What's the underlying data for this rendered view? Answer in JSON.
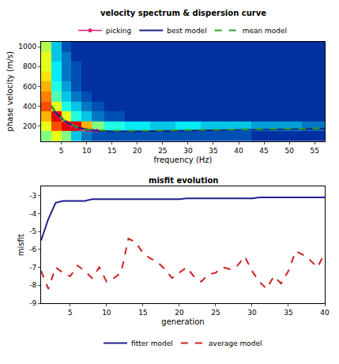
{
  "chart_data": [
    {
      "type": "heatmap",
      "title": "velocity spectrum & dispersion curve",
      "x_label": "frequency (Hz)",
      "y_label": "phase velocity (m/s)",
      "xlim": [
        1,
        57
      ],
      "ylim": [
        50,
        1050
      ],
      "xticks": [
        5,
        10,
        15,
        20,
        25,
        30,
        35,
        40,
        45,
        50,
        55
      ],
      "yticks": [
        200,
        400,
        600,
        800,
        1000
      ],
      "legend": "top",
      "heatmap": {
        "x": [
          2,
          4,
          6,
          8,
          10,
          12,
          15,
          20,
          25,
          30,
          35,
          40,
          45,
          50,
          55
        ],
        "y": [
          100,
          200,
          300,
          400,
          500,
          600,
          700,
          800,
          900,
          1000
        ],
        "zlim": [
          0,
          1
        ],
        "z": [
          [
            0.5,
            0.6,
            0.5,
            0.3,
            0.2,
            0.15,
            0.15,
            0.15,
            0.15,
            0.15,
            0.15,
            0.15,
            0.1,
            0.1,
            0.1
          ],
          [
            0.6,
            0.8,
            0.9,
            0.9,
            0.7,
            0.5,
            0.4,
            0.35,
            0.3,
            0.35,
            0.3,
            0.3,
            0.25,
            0.25,
            0.2
          ],
          [
            0.7,
            0.9,
            0.6,
            0.4,
            0.3,
            0.2,
            0.15,
            0.1,
            0.1,
            0.1,
            0.1,
            0.1,
            0.1,
            0.1,
            0.1
          ],
          [
            0.8,
            0.6,
            0.4,
            0.3,
            0.2,
            0.15,
            0.1,
            0.1,
            0.1,
            0.1,
            0.1,
            0.1,
            0.1,
            0.1,
            0.1
          ],
          [
            0.75,
            0.45,
            0.3,
            0.2,
            0.15,
            0.1,
            0.1,
            0.1,
            0.1,
            0.1,
            0.1,
            0.1,
            0.1,
            0.1,
            0.1
          ],
          [
            0.7,
            0.4,
            0.25,
            0.15,
            0.1,
            0.1,
            0.1,
            0.1,
            0.1,
            0.1,
            0.1,
            0.1,
            0.1,
            0.1,
            0.1
          ],
          [
            0.65,
            0.35,
            0.2,
            0.15,
            0.1,
            0.1,
            0.1,
            0.1,
            0.1,
            0.1,
            0.1,
            0.1,
            0.1,
            0.1,
            0.1
          ],
          [
            0.6,
            0.35,
            0.2,
            0.15,
            0.1,
            0.1,
            0.1,
            0.1,
            0.1,
            0.1,
            0.1,
            0.1,
            0.1,
            0.1,
            0.1
          ],
          [
            0.6,
            0.3,
            0.2,
            0.1,
            0.1,
            0.1,
            0.1,
            0.1,
            0.1,
            0.1,
            0.1,
            0.1,
            0.1,
            0.1,
            0.1
          ],
          [
            0.55,
            0.3,
            0.15,
            0.1,
            0.1,
            0.1,
            0.1,
            0.1,
            0.1,
            0.1,
            0.1,
            0.1,
            0.1,
            0.1,
            0.1
          ]
        ]
      },
      "series": [
        {
          "name": "picking",
          "type": "scatter",
          "color": "#e0207a",
          "marker": "circle",
          "line_style": "solid",
          "x": [
            4,
            5,
            6,
            7,
            8,
            9,
            10,
            11,
            12
          ],
          "values": [
            330,
            280,
            240,
            210,
            190,
            175,
            165,
            160,
            155
          ]
        },
        {
          "name": "best model",
          "type": "line",
          "color": "#1a237e",
          "line_style": "solid",
          "x": [
            3,
            4,
            5,
            6,
            8,
            10,
            12,
            15,
            20,
            30,
            40,
            50,
            57
          ],
          "values": [
            400,
            330,
            280,
            240,
            190,
            165,
            155,
            150,
            150,
            155,
            165,
            170,
            175
          ]
        },
        {
          "name": "mean model",
          "type": "line",
          "color": "#2ca02c",
          "line_style": "dash",
          "x": [
            3,
            4,
            5,
            6,
            8,
            10,
            12,
            15,
            20,
            30,
            40,
            50,
            57
          ],
          "values": [
            410,
            335,
            285,
            245,
            195,
            170,
            160,
            155,
            155,
            160,
            170,
            175,
            180
          ]
        }
      ]
    },
    {
      "type": "line",
      "title": "misfit evolution",
      "x_label": "generation",
      "y_label": "misfit",
      "xlim": [
        1,
        40
      ],
      "ylim": [
        -9,
        -2.5
      ],
      "xticks": [
        5,
        10,
        15,
        20,
        25,
        30,
        35,
        40
      ],
      "yticks": [
        -9,
        -8,
        -7,
        -6,
        -5,
        -4,
        -3
      ],
      "legend": "bottom",
      "x": [
        1,
        2,
        3,
        4,
        5,
        6,
        7,
        8,
        9,
        10,
        11,
        12,
        13,
        14,
        15,
        16,
        17,
        18,
        19,
        20,
        21,
        22,
        23,
        24,
        25,
        26,
        27,
        28,
        29,
        30,
        31,
        32,
        33,
        34,
        35,
        36,
        37,
        38,
        39,
        40
      ],
      "series": [
        {
          "name": "fitter model",
          "color": "#1f1f8f",
          "line_style": "solid",
          "values": [
            -5.5,
            -4.3,
            -3.4,
            -3.3,
            -3.3,
            -3.3,
            -3.3,
            -3.2,
            -3.2,
            -3.2,
            -3.2,
            -3.2,
            -3.2,
            -3.2,
            -3.2,
            -3.2,
            -3.2,
            -3.2,
            -3.2,
            -3.2,
            -3.15,
            -3.15,
            -3.15,
            -3.15,
            -3.15,
            -3.15,
            -3.15,
            -3.15,
            -3.15,
            -3.15,
            -3.1,
            -3.1,
            -3.1,
            -3.1,
            -3.1,
            -3.1,
            -3.1,
            -3.1,
            -3.1,
            -3.1
          ]
        },
        {
          "name": "average model",
          "color": "#cc2222",
          "line_style": "dash",
          "values": [
            -7.2,
            -8.2,
            -7.0,
            -7.3,
            -7.5,
            -6.9,
            -7.2,
            -7.6,
            -7.0,
            -7.8,
            -7.6,
            -7.3,
            -5.4,
            -5.6,
            -6.2,
            -6.5,
            -6.7,
            -7.1,
            -7.6,
            -7.3,
            -7.0,
            -7.5,
            -7.8,
            -7.4,
            -7.3,
            -7.0,
            -7.1,
            -6.9,
            -6.4,
            -7.2,
            -7.8,
            -8.2,
            -7.5,
            -7.9,
            -7.2,
            -6.1,
            -6.3,
            -6.6,
            -7.0,
            -6.2
          ]
        }
      ]
    }
  ]
}
